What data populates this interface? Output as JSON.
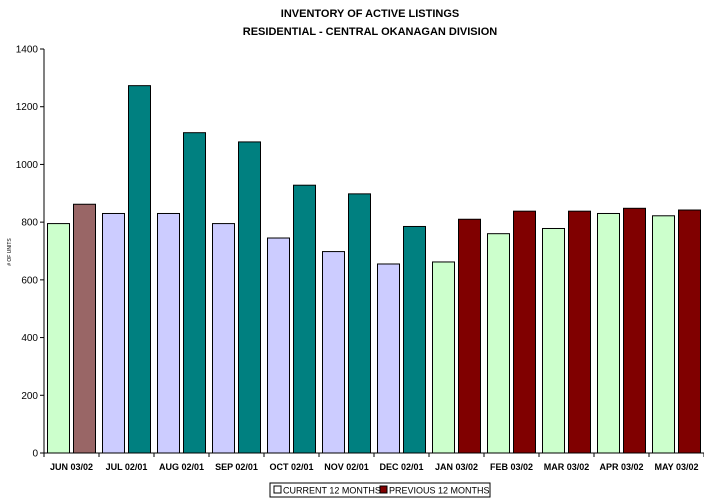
{
  "chart_data": {
    "type": "bar",
    "title": "INVENTORY OF ACTIVE LISTINGS",
    "subtitle": "RESIDENTIAL - CENTRAL OKANAGAN DIVISION",
    "ylabel": "# OF UNITS",
    "xlabel": "",
    "ylim": [
      0,
      1400
    ],
    "yticks": [
      "0",
      "200",
      "400",
      "600",
      "800",
      "1000",
      "1200",
      "1400"
    ],
    "grid": false,
    "legend_position": "bottom",
    "categories": [
      "JUN 03/02",
      "JUL 02/01",
      "AUG 02/01",
      "SEP 02/01",
      "OCT 02/01",
      "NOV 02/01",
      "DEC 02/01",
      "JAN 03/02",
      "FEB 03/02",
      "MAR 03/02",
      "APR 03/02",
      "MAY 03/02"
    ],
    "series": [
      {
        "name": "CURRENT 12 MONTHS",
        "values": [
          795,
          830,
          830,
          795,
          745,
          698,
          655,
          662,
          760,
          778,
          830,
          822
        ],
        "colors": [
          "#ccffcc",
          "#ccccff",
          "#ccccff",
          "#ccccff",
          "#ccccff",
          "#ccccff",
          "#ccccff",
          "#ccffcc",
          "#ccffcc",
          "#ccffcc",
          "#ccffcc",
          "#ccffcc"
        ]
      },
      {
        "name": "PREVIOUS 12 MONTHS",
        "values": [
          862,
          1273,
          1110,
          1078,
          928,
          898,
          785,
          810,
          838,
          838,
          848,
          842
        ],
        "colors": [
          "#996666",
          "#008080",
          "#008080",
          "#008080",
          "#008080",
          "#008080",
          "#008080",
          "#800000",
          "#800000",
          "#800000",
          "#800000",
          "#800000"
        ]
      }
    ]
  }
}
